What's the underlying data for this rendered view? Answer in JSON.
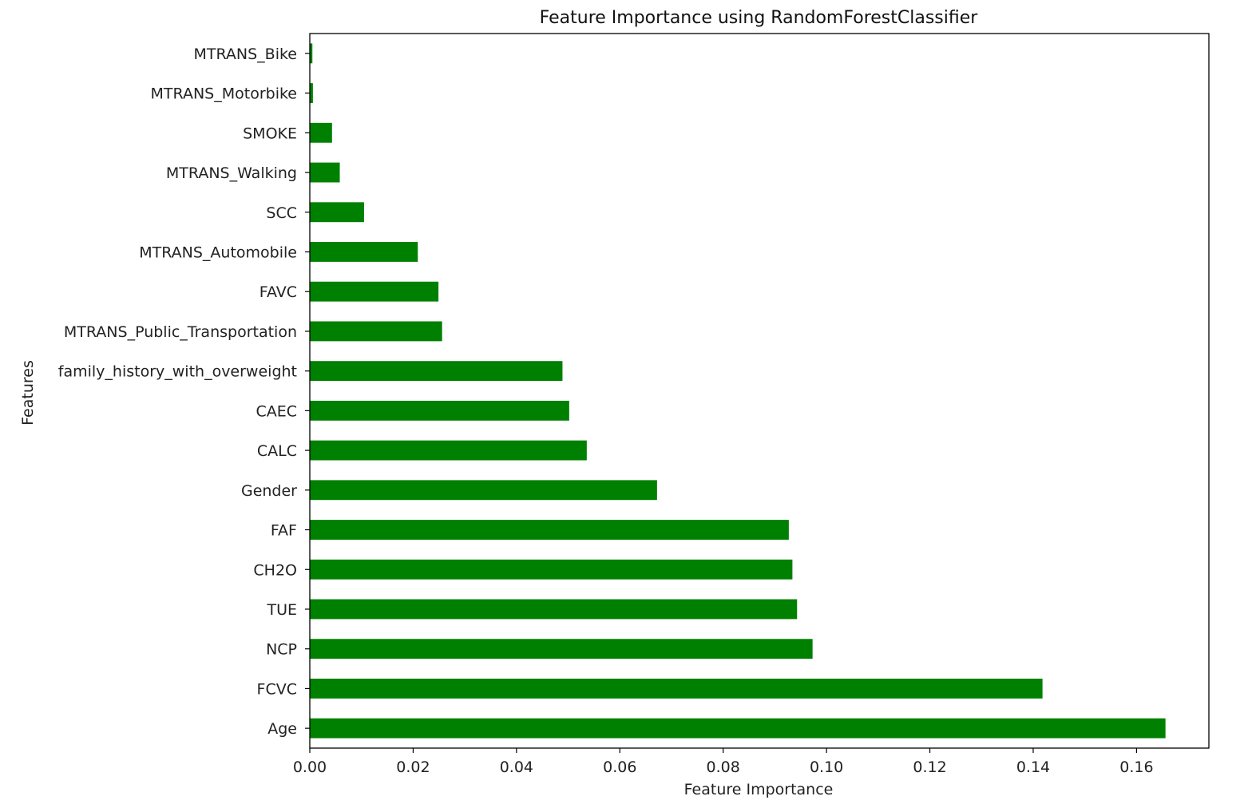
{
  "chart_data": {
    "type": "bar",
    "orientation": "horizontal",
    "title": "Feature Importance using RandomForestClassifier",
    "xlabel": "Feature Importance",
    "ylabel": "Features",
    "xlim": [
      0,
      0.174
    ],
    "xticks": [
      0.0,
      0.02,
      0.04,
      0.06,
      0.08,
      0.1,
      0.12,
      0.14,
      0.16
    ],
    "xtick_labels": [
      "0.00",
      "0.02",
      "0.04",
      "0.06",
      "0.08",
      "0.10",
      "0.12",
      "0.14",
      "0.16"
    ],
    "grid": false,
    "bar_color": "#008000",
    "categories": [
      "Age",
      "FCVC",
      "NCP",
      "TUE",
      "CH2O",
      "FAF",
      "Gender",
      "CALC",
      "CAEC",
      "family_history_with_overweight",
      "MTRANS_Public_Transportation",
      "FAVC",
      "MTRANS_Automobile",
      "SCC",
      "MTRANS_Walking",
      "SMOKE",
      "MTRANS_Motorbike",
      "MTRANS_Bike"
    ],
    "values": [
      0.1656,
      0.1418,
      0.0973,
      0.0943,
      0.0934,
      0.0927,
      0.0672,
      0.0536,
      0.0502,
      0.0489,
      0.0256,
      0.0249,
      0.0209,
      0.0105,
      0.0058,
      0.0043,
      0.0006,
      0.0005
    ]
  }
}
